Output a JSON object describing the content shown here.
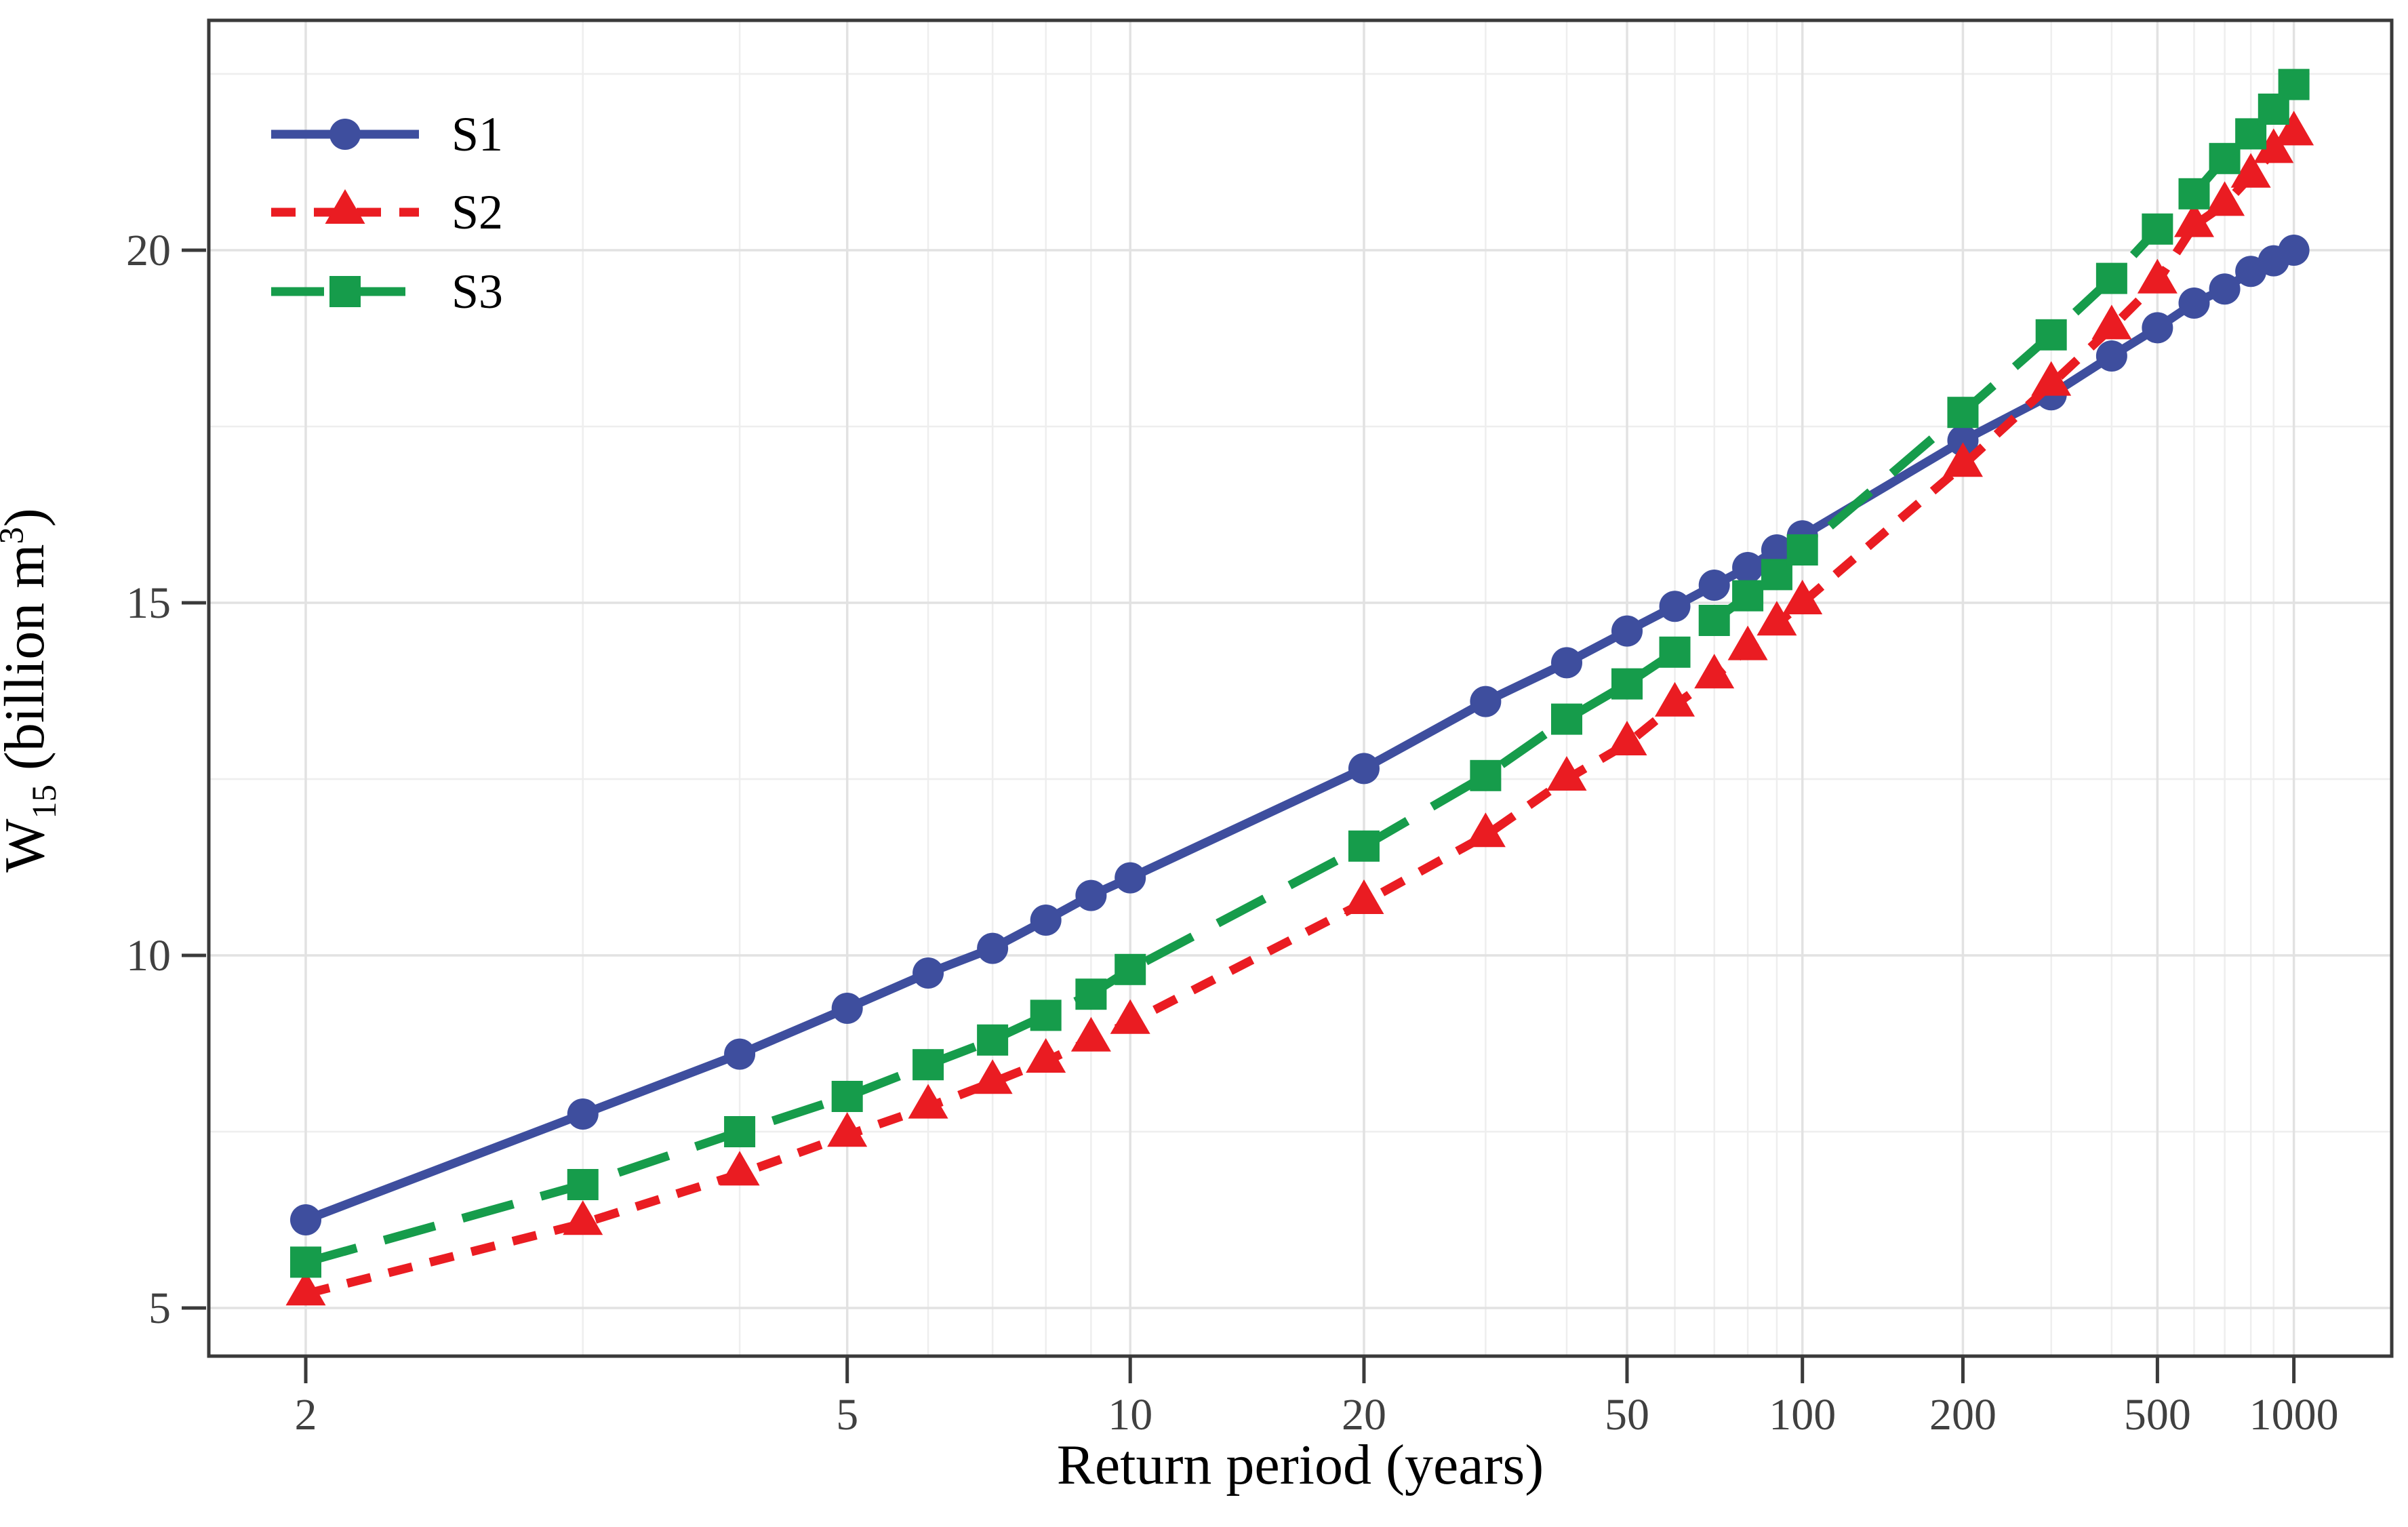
{
  "chart_data": {
    "type": "line",
    "title": "",
    "xlabel": "Return period (years)",
    "ylabel_parts": {
      "prefix": "W",
      "subscript": "15",
      "middle": " (billion m",
      "superscript": "3",
      "suffix": ")"
    },
    "x_scale": "return-period probability scale (normal quantile of 1 - 1/T)",
    "grid": "on",
    "legend_position": "inside top-left",
    "x": [
      2,
      3,
      4,
      5,
      6,
      7,
      8,
      9,
      10,
      20,
      30,
      40,
      50,
      60,
      70,
      80,
      90,
      100,
      200,
      300,
      400,
      500,
      600,
      700,
      800,
      900,
      1000
    ],
    "x_major_ticks": [
      2,
      5,
      10,
      20,
      50,
      100,
      200,
      500,
      1000
    ],
    "x_tick_labels": [
      "2",
      "5",
      "10",
      "20",
      "50",
      "100",
      "200",
      "500",
      "1000"
    ],
    "x_minor_gridlines": [
      3,
      4,
      6,
      7,
      8,
      9,
      30,
      40,
      60,
      70,
      80,
      90,
      300,
      400,
      600,
      700,
      800,
      900
    ],
    "y_major_ticks": [
      5,
      10,
      15,
      20
    ],
    "y_tick_labels": [
      "5",
      "10",
      "15",
      "20"
    ],
    "y_minor_gridlines": [
      7.5,
      12.5,
      17.5,
      22.5
    ],
    "ylim": [
      4.3,
      23.3
    ],
    "series": [
      {
        "name": "S1",
        "color": "#3E4E9E",
        "marker": "circle",
        "line_style": "solid",
        "values": [
          6.25,
          7.75,
          8.6,
          9.25,
          9.75,
          10.1,
          10.5,
          10.85,
          11.1,
          12.65,
          13.6,
          14.15,
          14.6,
          14.95,
          15.25,
          15.5,
          15.75,
          15.95,
          17.3,
          17.95,
          18.5,
          18.9,
          19.25,
          19.45,
          19.7,
          19.85,
          20.0
        ]
      },
      {
        "name": "S2",
        "color": "#EA1C22",
        "marker": "triangle",
        "line_style": "dashed-short",
        "values": [
          5.2,
          6.2,
          6.9,
          7.45,
          7.85,
          8.2,
          8.5,
          8.8,
          9.05,
          10.75,
          11.7,
          12.5,
          13.0,
          13.55,
          13.95,
          14.35,
          14.7,
          15.0,
          16.95,
          18.1,
          18.9,
          19.55,
          20.35,
          20.65,
          21.05,
          21.4,
          21.65
        ]
      },
      {
        "name": "S3",
        "color": "#169C4B",
        "marker": "square",
        "line_style": "dashed-long",
        "values": [
          5.65,
          6.75,
          7.5,
          8.0,
          8.45,
          8.8,
          9.15,
          9.45,
          9.8,
          11.55,
          12.55,
          13.35,
          13.85,
          14.3,
          14.75,
          15.1,
          15.4,
          15.75,
          17.7,
          18.8,
          19.6,
          20.3,
          20.8,
          21.3,
          21.65,
          22.0,
          22.35
        ]
      }
    ]
  },
  "colors": {
    "background": "#ffffff",
    "panel_border": "#3a3a3a",
    "tick_mark": "#3a3a3a",
    "tick_label": "#404040",
    "grid_major": "#e2e2e2",
    "grid_minor": "#eeeeee"
  }
}
